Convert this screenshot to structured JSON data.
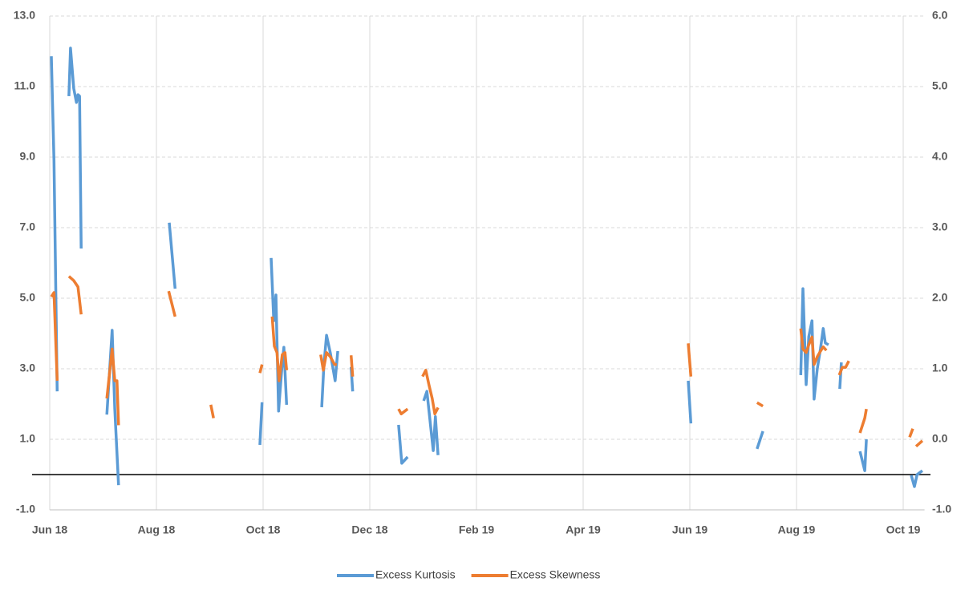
{
  "chart_data": {
    "type": "line",
    "xticks": [
      {
        "value": 0,
        "label": "Jun 18"
      },
      {
        "value": 2,
        "label": "Aug 18"
      },
      {
        "value": 4,
        "label": "Oct 18"
      },
      {
        "value": 6,
        "label": "Dec 18"
      },
      {
        "value": 8,
        "label": "Feb 19"
      },
      {
        "value": 10,
        "label": "Apr 19"
      },
      {
        "value": 12,
        "label": "Jun 19"
      },
      {
        "value": 14,
        "label": "Aug 19"
      },
      {
        "value": 16,
        "label": "Oct 19"
      }
    ],
    "xlim": [
      0,
      16.4
    ],
    "ylim": [
      -1,
      13
    ],
    "yticks": [
      {
        "value": -1,
        "label": "-1.0"
      },
      {
        "value": 1,
        "label": "1.0"
      },
      {
        "value": 3,
        "label": "3.0"
      },
      {
        "value": 5,
        "label": "5.0"
      },
      {
        "value": 7,
        "label": "7.0"
      },
      {
        "value": 9,
        "label": "9.0"
      },
      {
        "value": 11,
        "label": "11.0"
      },
      {
        "value": 13,
        "label": "13.0"
      }
    ],
    "y2lim": [
      -1,
      6
    ],
    "y2ticks": [
      {
        "value": -1,
        "label": "-1.0"
      },
      {
        "value": 0,
        "label": "0.0"
      },
      {
        "value": 1,
        "label": "1.0"
      },
      {
        "value": 2,
        "label": "2.0"
      },
      {
        "value": 3,
        "label": "3.0"
      },
      {
        "value": 4,
        "label": "4.0"
      },
      {
        "value": 5,
        "label": "5.0"
      },
      {
        "value": 6,
        "label": "6.0"
      }
    ],
    "grid": true,
    "legend": "bottom",
    "series": [
      {
        "name": "Excess Kurtosis",
        "color": "#5b9bd5",
        "x": [
          0.03,
          0.08,
          0.14,
          null,
          0.36,
          0.39,
          0.45,
          0.5,
          0.53,
          0.56,
          0.59,
          null,
          1.07,
          1.17,
          1.22,
          1.29,
          null,
          2.24,
          2.35,
          null,
          3.94,
          3.98,
          null,
          4.15,
          4.2,
          4.24,
          4.29,
          4.35,
          4.39,
          4.44,
          null,
          5.1,
          5.14,
          5.19,
          5.26,
          5.35,
          5.4,
          null,
          5.65,
          5.68,
          null,
          6.54,
          6.6,
          6.71,
          null,
          7.01,
          7.07,
          7.19,
          7.23,
          7.28,
          null,
          11.97,
          12.02,
          null,
          13.26,
          13.37,
          null,
          14.08,
          14.12,
          14.18,
          14.23,
          14.29,
          14.33,
          14.39,
          14.45,
          14.5,
          14.54,
          14.6,
          null,
          14.81,
          14.84,
          null,
          15.19,
          15.28,
          15.31,
          null,
          16.15,
          16.21,
          16.26,
          16.36
        ],
        "values": [
          11.86,
          8.9,
          2.36,
          null,
          10.73,
          12.09,
          10.95,
          10.55,
          10.77,
          10.73,
          6.41,
          null,
          1.7,
          4.09,
          1.86,
          -0.3,
          null,
          7.14,
          5.27,
          null,
          0.84,
          2.05,
          null,
          6.14,
          4.36,
          5.09,
          1.8,
          3.0,
          3.61,
          1.98,
          null,
          1.91,
          3.11,
          3.95,
          3.45,
          2.66,
          3.5,
          null,
          3.05,
          2.36,
          null,
          1.41,
          0.32,
          0.5,
          null,
          2.09,
          2.36,
          0.68,
          1.64,
          0.55,
          null,
          2.66,
          1.45,
          null,
          0.73,
          1.23,
          null,
          2.82,
          5.27,
          2.55,
          3.91,
          4.36,
          2.14,
          3.0,
          3.57,
          4.14,
          3.73,
          3.68,
          null,
          2.43,
          3.18,
          null,
          0.66,
          0.11,
          1.0,
          null,
          -0.02,
          -0.34,
          0.0,
          0.11
        ]
      },
      {
        "name": "Excess Skewness",
        "color": "#ed7d31",
        "axis": "y2",
        "x": [
          0.03,
          0.08,
          0.14,
          null,
          0.36,
          0.45,
          0.53,
          0.59,
          null,
          1.07,
          1.17,
          1.22,
          1.26,
          1.29,
          null,
          2.23,
          2.35,
          null,
          3.02,
          3.07,
          null,
          3.94,
          3.98,
          null,
          4.17,
          4.21,
          4.26,
          4.3,
          4.36,
          4.41,
          4.44,
          null,
          5.08,
          5.13,
          5.19,
          5.26,
          5.34,
          5.38,
          null,
          5.65,
          5.68,
          null,
          6.54,
          6.59,
          6.71,
          null,
          6.99,
          7.05,
          7.11,
          7.17,
          7.22,
          7.28,
          null,
          11.97,
          12.02,
          null,
          13.26,
          13.37,
          null,
          14.08,
          14.12,
          14.18,
          14.23,
          14.29,
          14.33,
          14.39,
          14.45,
          14.5,
          14.56,
          null,
          14.8,
          14.86,
          14.92,
          14.98,
          null,
          15.19,
          15.28,
          15.31,
          null,
          16.12,
          16.18,
          null,
          16.24,
          16.36
        ],
        "values": [
          2.02,
          2.08,
          0.83,
          null,
          2.31,
          2.25,
          2.16,
          1.77,
          null,
          0.58,
          1.28,
          0.83,
          0.83,
          0.2,
          null,
          2.1,
          1.74,
          null,
          0.49,
          0.3,
          null,
          0.94,
          1.06,
          null,
          1.74,
          1.32,
          1.23,
          0.83,
          1.2,
          1.23,
          0.98,
          null,
          1.2,
          0.98,
          1.23,
          1.17,
          1.06,
          1.06,
          null,
          1.19,
          0.89,
          null,
          0.43,
          0.36,
          0.43,
          null,
          0.89,
          0.98,
          0.77,
          0.58,
          0.36,
          0.45,
          null,
          1.36,
          0.89,
          null,
          0.52,
          0.47,
          null,
          1.57,
          1.28,
          1.23,
          1.34,
          1.45,
          1.06,
          1.17,
          1.25,
          1.31,
          1.26,
          null,
          0.91,
          1.02,
          1.02,
          1.11,
          null,
          0.09,
          0.3,
          0.43,
          null,
          0.03,
          0.15,
          null,
          -0.1,
          -0.02
        ]
      }
    ]
  }
}
